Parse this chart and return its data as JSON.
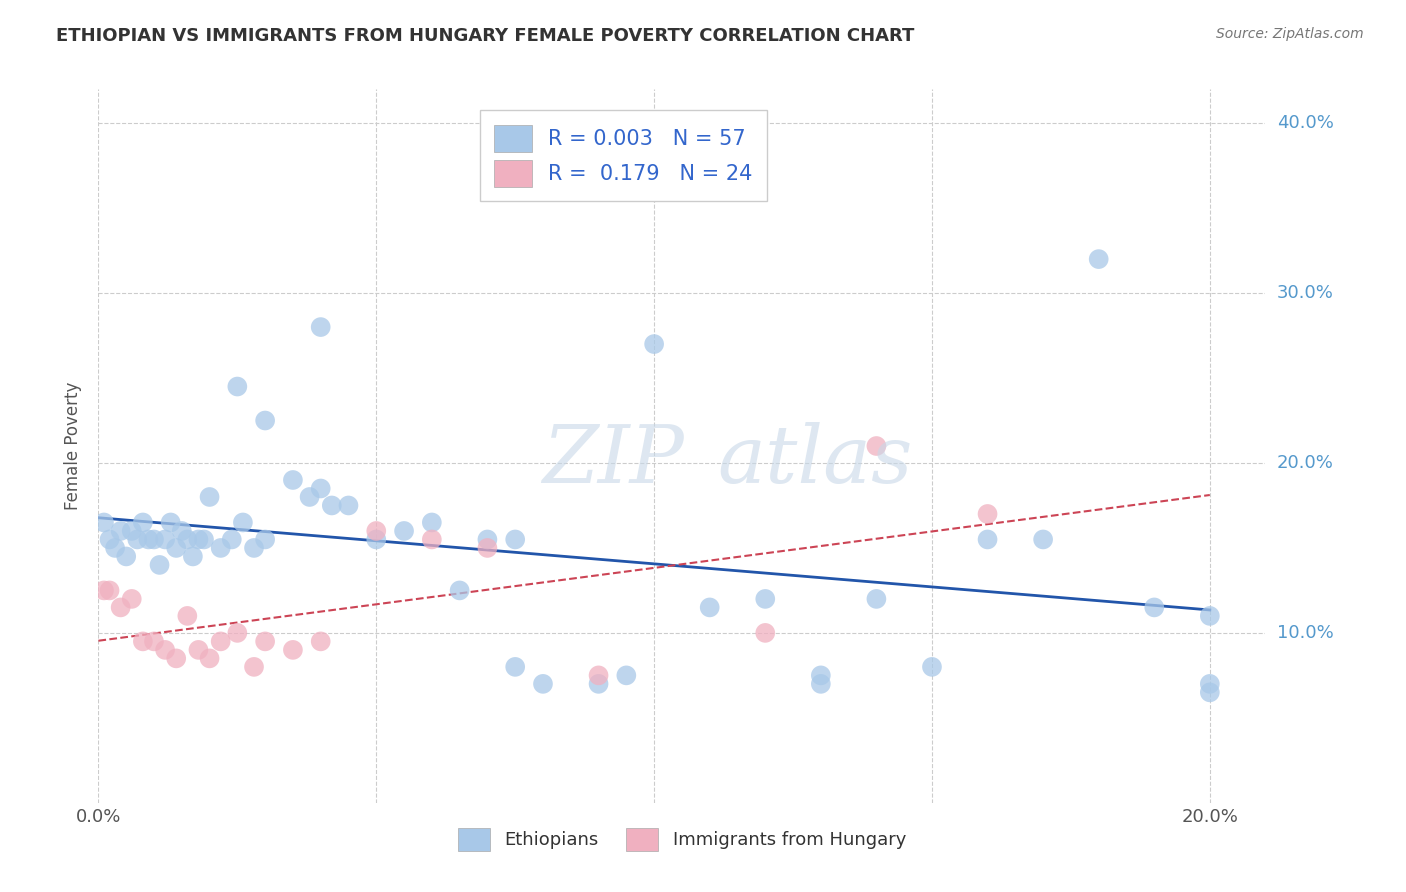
{
  "title": "ETHIOPIAN VS IMMIGRANTS FROM HUNGARY FEMALE POVERTY CORRELATION CHART",
  "source": "Source: ZipAtlas.com",
  "ylabel": "Female Poverty",
  "xlim": [
    0.0,
    0.21
  ],
  "ylim": [
    0.0,
    0.42
  ],
  "xticks": [
    0.0,
    0.05,
    0.1,
    0.15,
    0.2
  ],
  "xticklabels": [
    "0.0%",
    "",
    "",
    "",
    "20.0%"
  ],
  "yticks": [
    0.1,
    0.2,
    0.3,
    0.4
  ],
  "yticklabels": [
    "10.0%",
    "20.0%",
    "30.0%",
    "40.0%"
  ],
  "legend_labels": [
    "Ethiopians",
    "Immigrants from Hungary"
  ],
  "r_ethiopian": "0.003",
  "n_ethiopian": "57",
  "r_hungary": "0.179",
  "n_hungary": "24",
  "color_ethiopian": "#a8c8e8",
  "color_hungary": "#f0b0c0",
  "trendline_ethiopian": "#2255aa",
  "trendline_hungary": "#cc4455",
  "grid_color": "#cccccc",
  "background_color": "#ffffff",
  "ethiopian_x": [
    0.001,
    0.002,
    0.003,
    0.004,
    0.005,
    0.006,
    0.007,
    0.008,
    0.009,
    0.01,
    0.011,
    0.012,
    0.013,
    0.014,
    0.015,
    0.016,
    0.017,
    0.018,
    0.019,
    0.02,
    0.022,
    0.024,
    0.026,
    0.028,
    0.03,
    0.035,
    0.038,
    0.04,
    0.042,
    0.045,
    0.05,
    0.055,
    0.06,
    0.065,
    0.07,
    0.075,
    0.08,
    0.09,
    0.095,
    0.1,
    0.11,
    0.12,
    0.13,
    0.14,
    0.15,
    0.16,
    0.17,
    0.18,
    0.19,
    0.2,
    0.2,
    0.2,
    0.04,
    0.025,
    0.03,
    0.13,
    0.075
  ],
  "ethiopian_y": [
    0.165,
    0.155,
    0.15,
    0.16,
    0.145,
    0.16,
    0.155,
    0.165,
    0.155,
    0.155,
    0.14,
    0.155,
    0.165,
    0.15,
    0.16,
    0.155,
    0.145,
    0.155,
    0.155,
    0.18,
    0.15,
    0.155,
    0.165,
    0.15,
    0.155,
    0.19,
    0.18,
    0.185,
    0.175,
    0.175,
    0.155,
    0.16,
    0.165,
    0.125,
    0.155,
    0.155,
    0.07,
    0.07,
    0.075,
    0.27,
    0.115,
    0.12,
    0.07,
    0.12,
    0.08,
    0.155,
    0.155,
    0.32,
    0.115,
    0.07,
    0.065,
    0.11,
    0.28,
    0.245,
    0.225,
    0.075,
    0.08
  ],
  "hungary_x": [
    0.001,
    0.002,
    0.004,
    0.006,
    0.008,
    0.01,
    0.012,
    0.014,
    0.016,
    0.018,
    0.02,
    0.022,
    0.025,
    0.028,
    0.03,
    0.035,
    0.04,
    0.05,
    0.06,
    0.07,
    0.09,
    0.12,
    0.14,
    0.16
  ],
  "hungary_y": [
    0.125,
    0.125,
    0.115,
    0.12,
    0.095,
    0.095,
    0.09,
    0.085,
    0.11,
    0.09,
    0.085,
    0.095,
    0.1,
    0.08,
    0.095,
    0.09,
    0.095,
    0.16,
    0.155,
    0.15,
    0.075,
    0.1,
    0.21,
    0.17
  ]
}
